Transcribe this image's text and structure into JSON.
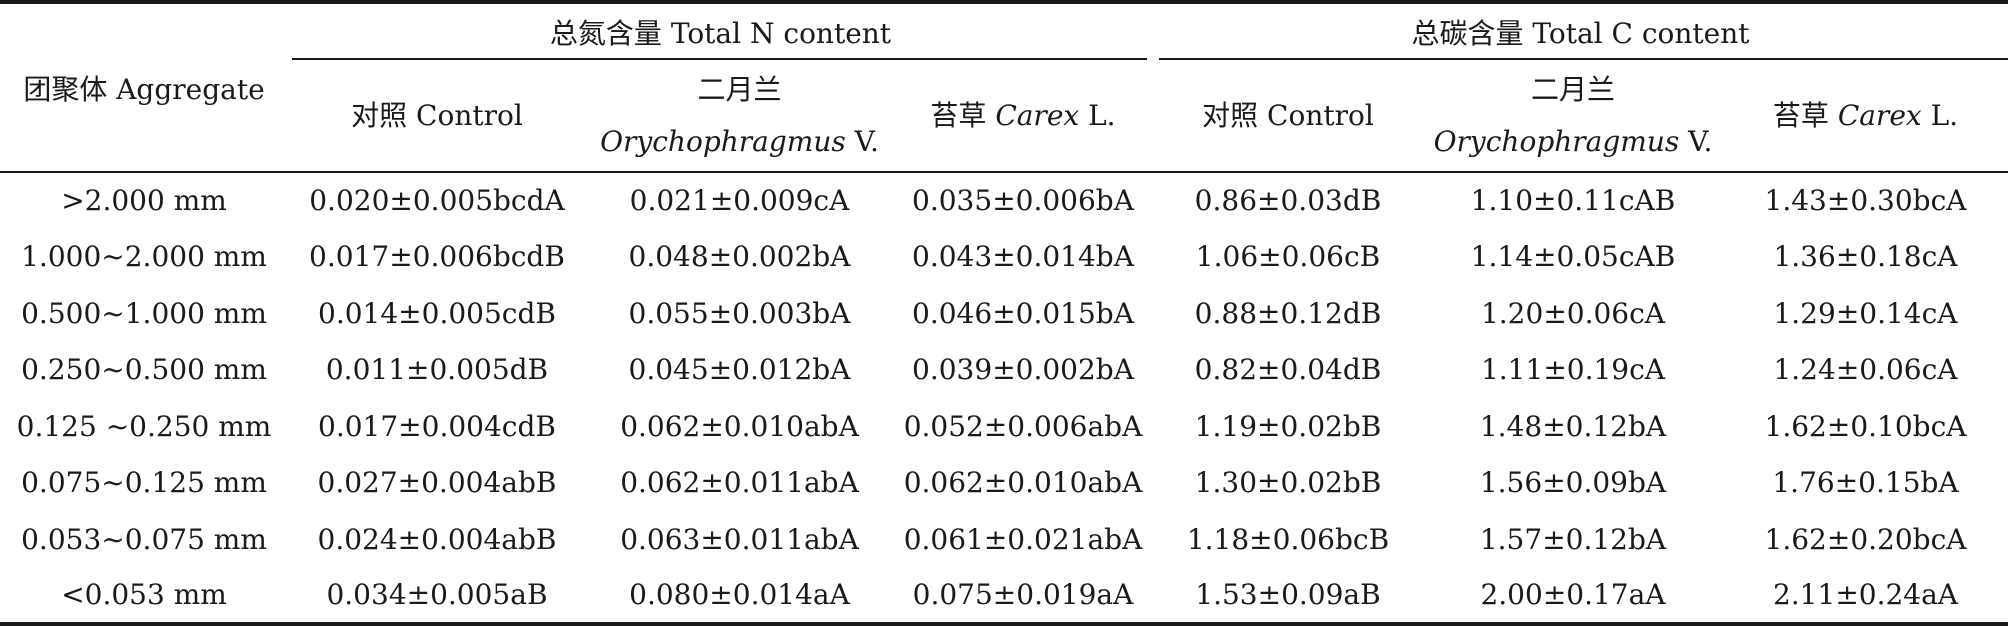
{
  "header": {
    "aggregate": "团聚体 Aggregate",
    "total_n": "总氮含量 Total N content",
    "total_c": "总碳含量 Total C content",
    "control": "对照 Control",
    "orychophragmus_cn": "二月兰",
    "orychophragmus_latin": "Orychophragmus",
    "orychophragmus_abbr": " V.",
    "carex_cn": "苔草 ",
    "carex_latin": "Carex",
    "carex_abbr": " L."
  },
  "rows": [
    {
      "aggregate": ">2.000 mm",
      "n_control": "0.020±0.005bcdA",
      "n_orycho": "0.021±0.009cA",
      "n_carex": "0.035±0.006bA",
      "c_control": "0.86±0.03dB",
      "c_orycho": "1.10±0.11cAB",
      "c_carex": "1.43±0.30bcA"
    },
    {
      "aggregate": "1.000~2.000 mm",
      "n_control": "0.017±0.006bcdB",
      "n_orycho": "0.048±0.002bA",
      "n_carex": "0.043±0.014bA",
      "c_control": "1.06±0.06cB",
      "c_orycho": "1.14±0.05cAB",
      "c_carex": "1.36±0.18cA"
    },
    {
      "aggregate": "0.500~1.000 mm",
      "n_control": "0.014±0.005cdB",
      "n_orycho": "0.055±0.003bA",
      "n_carex": "0.046±0.015bA",
      "c_control": "0.88±0.12dB",
      "c_orycho": "1.20±0.06cA",
      "c_carex": "1.29±0.14cA"
    },
    {
      "aggregate": "0.250~0.500 mm",
      "n_control": "0.011±0.005dB",
      "n_orycho": "0.045±0.012bA",
      "n_carex": "0.039±0.002bA",
      "c_control": "0.82±0.04dB",
      "c_orycho": "1.11±0.19cA",
      "c_carex": "1.24±0.06cA"
    },
    {
      "aggregate": "0.125 ~0.250 mm",
      "n_control": "0.017±0.004cdB",
      "n_orycho": "0.062±0.010abA",
      "n_carex": "0.052±0.006abA",
      "c_control": "1.19±0.02bB",
      "c_orycho": "1.48±0.12bA",
      "c_carex": "1.62±0.10bcA"
    },
    {
      "aggregate": "0.075~0.125 mm",
      "n_control": "0.027±0.004abB",
      "n_orycho": "0.062±0.011abA",
      "n_carex": "0.062±0.010abA",
      "c_control": "1.30±0.02bB",
      "c_orycho": "1.56±0.09bA",
      "c_carex": "1.76±0.15bA"
    },
    {
      "aggregate": "0.053~0.075 mm",
      "n_control": "0.024±0.004abB",
      "n_orycho": "0.063±0.011abA",
      "n_carex": "0.061±0.021abA",
      "c_control": "1.18±0.06bcB",
      "c_orycho": "1.57±0.12bA",
      "c_carex": "1.62±0.20bcA"
    },
    {
      "aggregate": "<0.053 mm",
      "n_control": "0.034±0.005aB",
      "n_orycho": "0.080±0.014aA",
      "n_carex": "0.075±0.019aA",
      "c_control": "1.53±0.09aB",
      "c_orycho": "2.00±0.17aA",
      "c_carex": "2.11±0.24aA"
    }
  ]
}
